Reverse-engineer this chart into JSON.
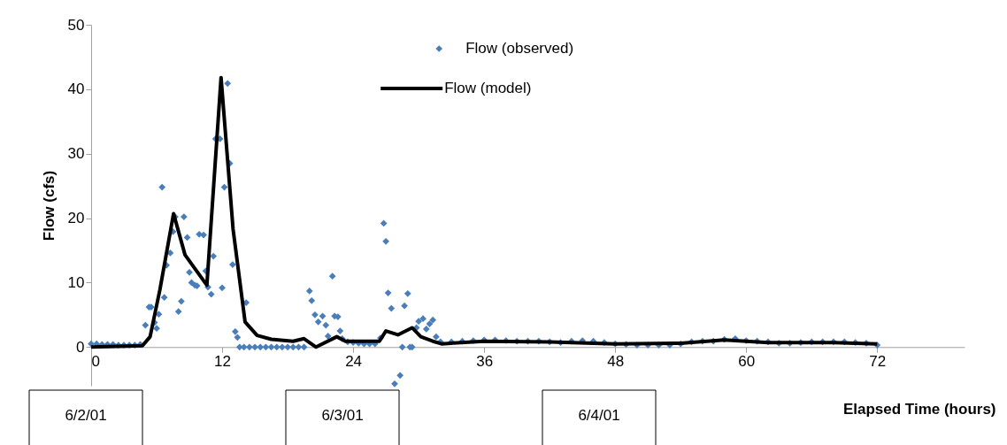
{
  "chart_data": {
    "type": "scatter",
    "xlabel": "Elapsed Time (hours)",
    "ylabel": "Flow (cfs)",
    "xlim": [
      0,
      80
    ],
    "xticks": [
      0,
      12,
      24,
      36,
      48,
      60,
      72
    ],
    "ylim": [
      -6,
      50
    ],
    "yticks": [
      0,
      10,
      20,
      30,
      40,
      50
    ],
    "grid": false,
    "legend": "top",
    "annotations": [
      "6/2/01",
      "6/3/01",
      "6/4/01"
    ],
    "series": [
      {
        "name": "Flow (observed)",
        "type": "scatter",
        "marker": "diamond",
        "color": "#4a7ebb",
        "x": [
          0,
          0.5,
          1,
          1.5,
          2,
          2.5,
          3,
          3.5,
          4,
          4.5,
          4.97,
          5.3,
          5.5,
          5.8,
          6.0,
          6.2,
          6.5,
          6.7,
          6.9,
          7.25,
          7.5,
          7.7,
          8.0,
          8.26,
          8.5,
          8.8,
          9.0,
          9.2,
          9.5,
          9.7,
          9.9,
          10.3,
          10.5,
          10.7,
          11.0,
          11.2,
          11.4,
          11.8,
          12.0,
          12.2,
          12.5,
          12.7,
          12.96,
          13.2,
          13.4,
          13.6,
          14.0,
          14.2,
          14.5,
          15,
          15.5,
          16,
          16.5,
          17,
          17.5,
          18,
          18.5,
          19,
          19.5,
          20.0,
          20.2,
          20.5,
          20.8,
          21.2,
          21.5,
          21.7,
          22.1,
          22.3,
          22.6,
          22.8,
          23.0,
          23.5,
          24,
          24.5,
          25,
          25.5,
          26,
          26.5,
          26.8,
          27.0,
          27.2,
          27.5,
          27.8,
          28.3,
          28.5,
          28.7,
          29.0,
          29.2,
          29.4,
          29.8,
          30.0,
          30.4,
          30.7,
          31.0,
          31.3,
          31.6,
          32,
          33,
          34,
          35,
          36,
          37,
          38,
          39,
          40,
          41,
          42,
          43,
          44,
          45,
          46,
          47,
          48,
          49,
          50,
          51,
          52,
          53,
          54,
          55,
          56,
          57,
          58,
          59,
          60,
          61,
          62,
          63,
          64,
          65,
          66,
          67,
          68,
          69,
          70,
          71,
          72
        ],
        "values": [
          0.5,
          0.5,
          0.4,
          0.4,
          0.4,
          0.3,
          0.3,
          0.3,
          0.3,
          0.4,
          3.4,
          6.2,
          6.2,
          3.8,
          2.9,
          5.1,
          24.8,
          7.7,
          12.7,
          14.6,
          17.9,
          20.2,
          5.5,
          7.1,
          20.2,
          17.0,
          11.6,
          10.0,
          9.6,
          9.5,
          17.5,
          17.4,
          11.8,
          9.3,
          8.2,
          14.1,
          32.3,
          32.3,
          9.2,
          24.8,
          40.9,
          28.5,
          12.8,
          2.4,
          1.5,
          0,
          0,
          6.9,
          0,
          0,
          0,
          0,
          0,
          0,
          0,
          0,
          0,
          0,
          0,
          8.7,
          7.2,
          5.0,
          3.9,
          4.8,
          3.4,
          1.7,
          11.0,
          4.8,
          4.7,
          2.5,
          1.3,
          0.8,
          0.7,
          0.6,
          0.5,
          0.5,
          0.5,
          1.4,
          19.2,
          16.4,
          8.4,
          6.0,
          -5.7,
          -4.4,
          0,
          6.4,
          8.3,
          0,
          0,
          3.0,
          4.0,
          4.4,
          2.8,
          3.6,
          4.2,
          1.6,
          0.8,
          0.8,
          0.9,
          1.0,
          1.1,
          1.1,
          1.0,
          0.9,
          0.9,
          0.9,
          0.8,
          0.7,
          0.9,
          1.0,
          0.9,
          0.7,
          0.5,
          0.4,
          0.3,
          0.3,
          0.3,
          0.3,
          0.5,
          0.8,
          0.9,
          0.9,
          1.2,
          1.3,
          1.0,
          0.9,
          0.8,
          0.6,
          0.6,
          0.7,
          0.8,
          0.8,
          0.8,
          0.8,
          0.7,
          0.6,
          0.3
        ]
      },
      {
        "name": "Flow (model)",
        "type": "line",
        "marker": "none",
        "line_style": "solid",
        "color": "#000000",
        "x": [
          0,
          4.7,
          5.4,
          6.3,
          7.55,
          8.6,
          10.6,
          11.9,
          13.0,
          14.1,
          15.2,
          16.5,
          18.5,
          19.5,
          20.6,
          22.5,
          23.3,
          26.4,
          27.0,
          28.1,
          29.4,
          30.2,
          31.3,
          32.1,
          36,
          42,
          48,
          54,
          58,
          62,
          68,
          72
        ],
        "values": [
          0,
          0.2,
          1.6,
          8.9,
          20.7,
          14.3,
          9.6,
          41.8,
          18.3,
          3.9,
          1.8,
          1.2,
          0.9,
          1.3,
          0,
          1.6,
          0.9,
          0.9,
          2.5,
          1.9,
          3.0,
          1.6,
          0.9,
          0.5,
          0.9,
          0.8,
          0.5,
          0.6,
          1.1,
          0.7,
          0.7,
          0.5
        ]
      }
    ]
  }
}
